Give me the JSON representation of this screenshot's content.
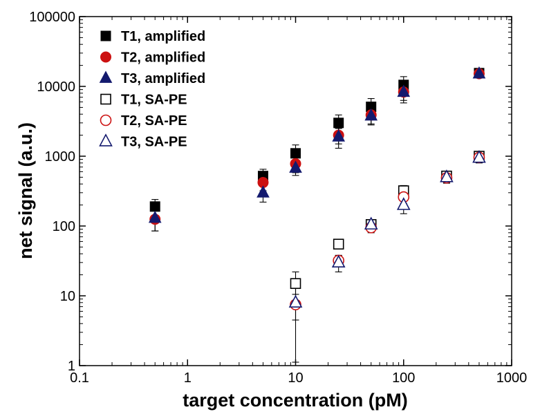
{
  "chart_data": {
    "type": "scatter",
    "xlabel": "target concentration (pM)",
    "ylabel": "net signal (a.u.)",
    "xscale": "log",
    "yscale": "log",
    "xlim": [
      0.1,
      1000
    ],
    "ylim": [
      1,
      100000
    ],
    "x_ticks": [
      "0.1",
      "1",
      "10",
      "100",
      "1000"
    ],
    "y_ticks": [
      "1",
      "10",
      "100",
      "1000",
      "10000",
      "100000"
    ],
    "grid": false,
    "legend_position": "top-left",
    "series": [
      {
        "name": "T1, amplified",
        "marker": "square",
        "filled": true,
        "color": "#000000",
        "x": [
          0.5,
          5,
          10,
          25,
          50,
          100,
          500
        ],
        "y": [
          190,
          520,
          1100,
          3000,
          5100,
          10500,
          15500
        ],
        "err": [
          50,
          130,
          350,
          900,
          1600,
          3300,
          2000
        ]
      },
      {
        "name": "T2, amplified",
        "marker": "circle",
        "filled": true,
        "color": "#cc1111",
        "x": [
          0.5,
          5,
          10,
          25,
          50,
          100,
          500
        ],
        "y": [
          125,
          420,
          780,
          2000,
          3900,
          8300,
          15200
        ],
        "err": [
          40,
          100,
          200,
          500,
          1000,
          2000,
          2000
        ]
      },
      {
        "name": "T3, amplified",
        "marker": "triangle",
        "filled": true,
        "color": "#141a6e",
        "x": [
          0.5,
          5,
          10,
          25,
          50,
          100,
          500
        ],
        "y": [
          130,
          300,
          680,
          1900,
          3800,
          8300,
          15200
        ],
        "err": [
          45,
          80,
          150,
          600,
          1000,
          2500,
          2000
        ]
      },
      {
        "name": "T1, SA-PE",
        "marker": "square",
        "filled": false,
        "color": "#000000",
        "x": [
          10,
          25,
          50,
          100,
          250,
          500
        ],
        "y": [
          15,
          55,
          105,
          320,
          520,
          1000
        ],
        "err": [
          7,
          8,
          15,
          60,
          80,
          150
        ]
      },
      {
        "name": "T2, SA-PE",
        "marker": "circle",
        "filled": false,
        "color": "#cc1111",
        "x": [
          10,
          25,
          50,
          100,
          250,
          500
        ],
        "y": [
          7.5,
          32,
          95,
          260,
          490,
          960
        ],
        "err": [
          3,
          6,
          15,
          50,
          80,
          150
        ]
      },
      {
        "name": "T3, SA-PE",
        "marker": "triangle",
        "filled": false,
        "color": "#141a6e",
        "x": [
          10,
          25,
          50,
          100,
          250,
          500
        ],
        "y": [
          8,
          30,
          105,
          200,
          500,
          950
        ],
        "err": [
          6.9,
          8,
          15,
          50,
          80,
          150
        ]
      }
    ]
  }
}
